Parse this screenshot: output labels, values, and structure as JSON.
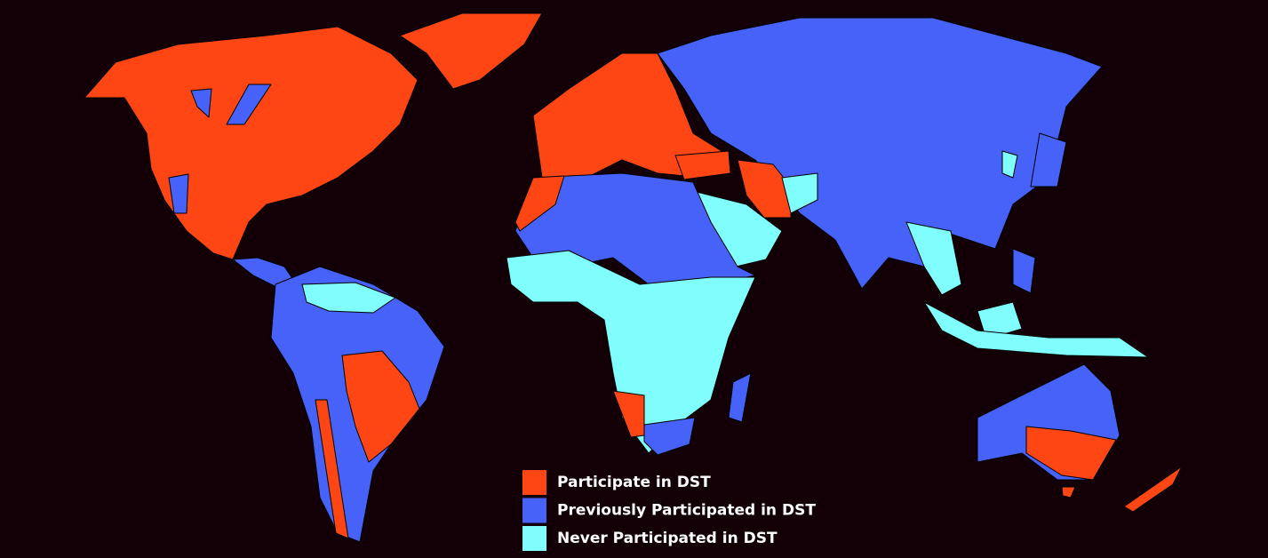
{
  "legend": {
    "items": [
      {
        "label": "Participate in DST",
        "color": "#fd4614"
      },
      {
        "label": "Previously Participated in DST",
        "color": "#4762f8"
      },
      {
        "label": "Never Participated in DST",
        "color": "#80fdfd"
      }
    ]
  }
}
